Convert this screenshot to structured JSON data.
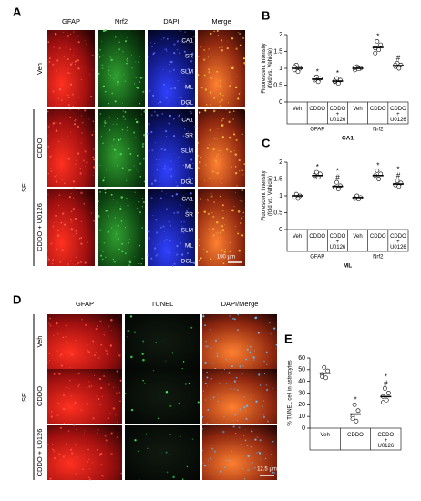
{
  "figure": {
    "panel_a": {
      "letter": "A",
      "columns": [
        "GFAP",
        "Nrf2",
        "DAPI",
        "Merge"
      ],
      "rows": [
        "Veh",
        "CDDO",
        "CDDO + U0126"
      ],
      "group": "SE",
      "regions": [
        "CA1",
        "SR",
        "SLM",
        "ML",
        "DGL"
      ],
      "scale": "100 µm"
    },
    "panel_d": {
      "letter": "D",
      "columns": [
        "GFAP",
        "TUNEL",
        "DAPI/Merge"
      ],
      "rows": [
        "Veh",
        "CDDO",
        "CDDO + U0126"
      ],
      "group": "SE",
      "scale": "12.5 µm"
    }
  },
  "chart_data": [
    {
      "type": "scatter",
      "panel": "B",
      "subtitle": "CA1",
      "ylabel": [
        "Fluorescent Intensity",
        "(fold vs. Vehicle)"
      ],
      "categories": [
        "Veh",
        "CDDO",
        "CDDO + U0126",
        "Veh",
        "CDDO",
        "CDDO + U0126"
      ],
      "groups": [
        "GFAP",
        "Nrf2"
      ],
      "means": [
        1.0,
        0.68,
        0.62,
        1.0,
        1.62,
        1.08
      ],
      "points": [
        [
          1.1,
          1.0,
          0.95,
          0.9,
          1.05
        ],
        [
          0.75,
          0.7,
          0.65,
          0.6,
          0.7
        ],
        [
          0.7,
          0.65,
          0.6,
          0.55,
          0.62
        ],
        [
          1.05,
          1.0,
          0.95,
          0.98,
          1.02
        ],
        [
          1.8,
          1.7,
          1.6,
          1.55,
          1.45
        ],
        [
          1.15,
          1.1,
          1.05,
          1.0,
          1.1
        ]
      ],
      "annotations": [
        [],
        [
          "*"
        ],
        [
          "*"
        ],
        [],
        [
          "*"
        ],
        [
          "#"
        ]
      ],
      "ylim": [
        0,
        2
      ],
      "yticks": [
        0,
        0.5,
        1,
        1.5,
        2
      ]
    },
    {
      "type": "scatter",
      "panel": "C",
      "subtitle": "ML",
      "ylabel": [
        "Fluorescent Intensity",
        "(fold vs. Vehicle)"
      ],
      "categories": [
        "Veh",
        "CDDO",
        "CDDO + U0126",
        "Veh",
        "CDDO",
        "CDDO + U0126"
      ],
      "groups": [
        "GFAP",
        "Nrf2"
      ],
      "means": [
        1.0,
        1.6,
        1.28,
        0.95,
        1.6,
        1.35
      ],
      "points": [
        [
          1.05,
          1.0,
          0.95,
          0.92
        ],
        [
          1.7,
          1.65,
          1.6,
          1.55
        ],
        [
          1.4,
          1.3,
          1.25,
          1.2
        ],
        [
          1.0,
          0.95,
          0.92,
          0.9
        ],
        [
          1.75,
          1.65,
          1.6,
          1.5
        ],
        [
          1.45,
          1.38,
          1.32,
          1.28
        ]
      ],
      "annotations": [
        [],
        [
          "*"
        ],
        [
          "*",
          "#"
        ],
        [],
        [
          "*"
        ],
        [
          "*",
          "#"
        ]
      ],
      "ylim": [
        0,
        2
      ],
      "yticks": [
        0,
        0.5,
        1,
        1.5,
        2
      ]
    },
    {
      "type": "scatter",
      "panel": "E",
      "ylabel": [
        "% TUNEL cell in astrocytes"
      ],
      "categories": [
        "Veh",
        "CDDO",
        "CDDO + U0126"
      ],
      "means": [
        47,
        12,
        27
      ],
      "points": [
        [
          52,
          49,
          46,
          43,
          44
        ],
        [
          20,
          15,
          10,
          6,
          8
        ],
        [
          34,
          30,
          27,
          24,
          22
        ]
      ],
      "annotations": [
        [],
        [
          "*"
        ],
        [
          "*",
          "#"
        ]
      ],
      "ylim": [
        0,
        60
      ],
      "yticks": [
        0,
        10,
        20,
        30,
        40,
        50,
        60
      ]
    }
  ]
}
